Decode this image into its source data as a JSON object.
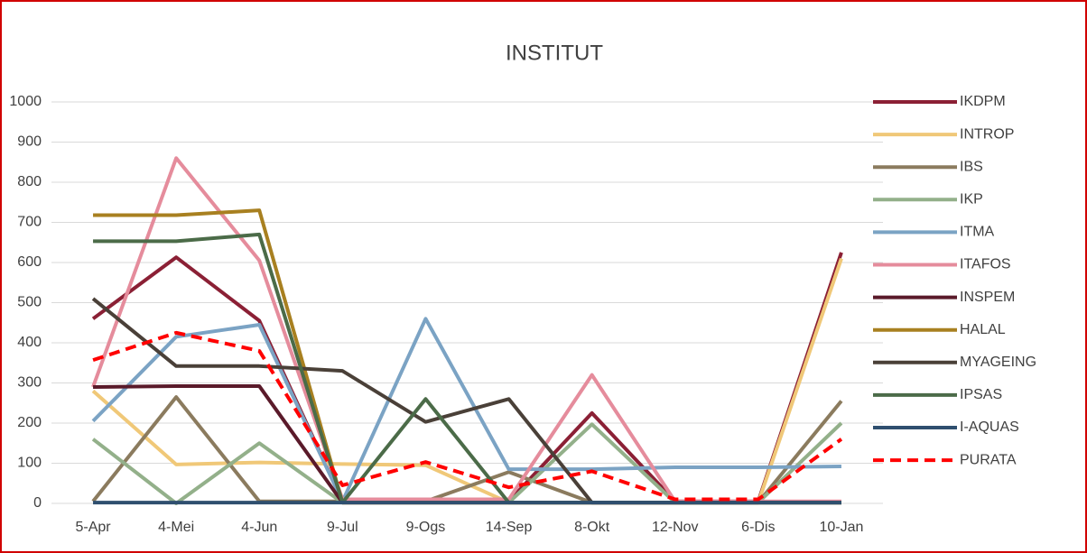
{
  "chart_data": {
    "type": "line",
    "title": "INSTITUT",
    "categories": [
      "5-Apr",
      "4-Mei",
      "4-Jun",
      "9-Jul",
      "9-Ogs",
      "14-Sep",
      "8-Okt",
      "12-Nov",
      "6-Dis",
      "10-Jan"
    ],
    "ylim": [
      0,
      1000
    ],
    "yticks": [
      0,
      100,
      200,
      300,
      400,
      500,
      600,
      700,
      800,
      900,
      1000
    ],
    "grid": true,
    "legend": "right",
    "series": [
      {
        "name": "IKDPM",
        "color": "#8b2035",
        "values": [
          460,
          613,
          455,
          5,
          5,
          5,
          225,
          5,
          5,
          625
        ]
      },
      {
        "name": "INTROP",
        "color": "#f0c878",
        "values": [
          280,
          97,
          102,
          98,
          95,
          2,
          2,
          2,
          2,
          610
        ]
      },
      {
        "name": "IBS",
        "color": "#8b7b5e",
        "values": [
          5,
          265,
          5,
          5,
          5,
          78,
          2,
          2,
          2,
          255
        ]
      },
      {
        "name": "IKP",
        "color": "#93b08a",
        "values": [
          160,
          0,
          150,
          2,
          2,
          2,
          197,
          2,
          2,
          200
        ]
      },
      {
        "name": "ITMA",
        "color": "#7ba3c4",
        "values": [
          205,
          415,
          445,
          5,
          460,
          85,
          85,
          90,
          90,
          92
        ]
      },
      {
        "name": "ITAFOS",
        "color": "#e58c9c",
        "values": [
          290,
          860,
          605,
          10,
          10,
          10,
          320,
          5,
          5,
          5
        ]
      },
      {
        "name": "INSPEM",
        "color": "#5a1a2a",
        "values": [
          290,
          292,
          292,
          2,
          2,
          2,
          2,
          2,
          2,
          2
        ]
      },
      {
        "name": "HALAL",
        "color": "#a88020",
        "values": [
          718,
          718,
          730,
          2,
          2,
          2,
          2,
          2,
          2,
          2
        ]
      },
      {
        "name": "MYAGEING",
        "color": "#4a4038",
        "values": [
          510,
          342,
          342,
          330,
          203,
          260,
          2,
          2,
          2,
          2
        ]
      },
      {
        "name": "IPSAS",
        "color": "#4b6b48",
        "values": [
          653,
          653,
          670,
          2,
          260,
          2,
          2,
          2,
          2,
          2
        ]
      },
      {
        "name": "I-AQUAS",
        "color": "#2f4f6f",
        "values": [
          2,
          2,
          2,
          2,
          2,
          2,
          2,
          2,
          2,
          2
        ]
      },
      {
        "name": "PURATA",
        "color": "#ff0000",
        "line_style": "dashed",
        "values": [
          357,
          425,
          380,
          45,
          103,
          40,
          80,
          10,
          10,
          160
        ]
      }
    ]
  }
}
